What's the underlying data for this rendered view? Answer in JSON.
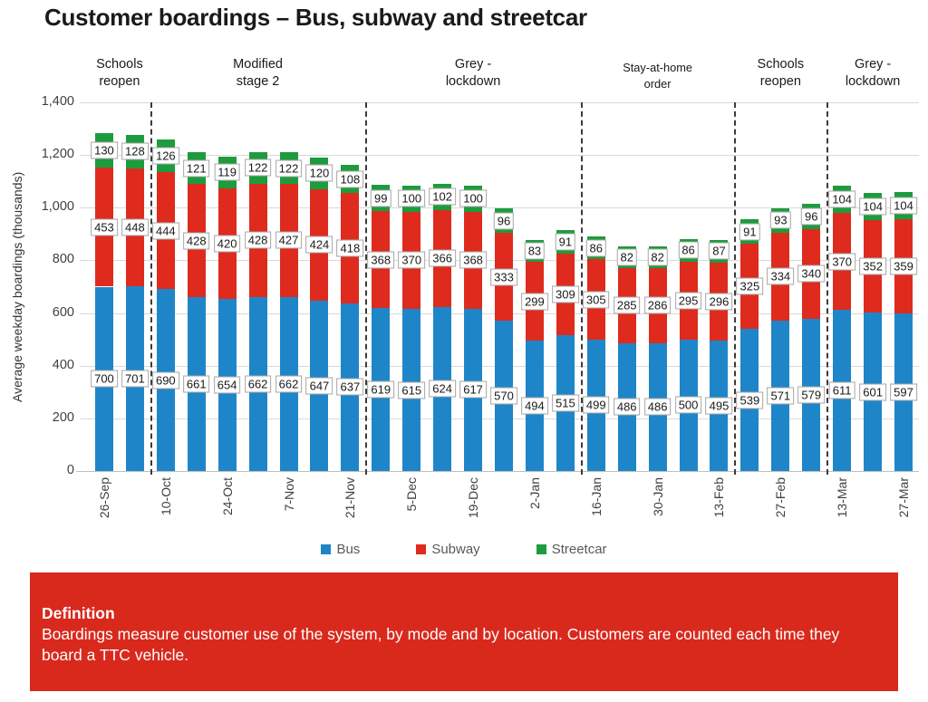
{
  "title": "Customer boardings – Bus, subway and streetcar",
  "chart_data": {
    "type": "bar",
    "stacked": true,
    "n_bars": 27,
    "title": "Customer boardings – Bus, subway and streetcar",
    "ylabel": "Average weekday boardings (thousands)",
    "xlabel": "",
    "ylim": [
      0,
      1400
    ],
    "grid": true,
    "legend_position": "bottom",
    "ytick_values": [
      0,
      200,
      400,
      600,
      800,
      1000,
      1200,
      1400
    ],
    "ytick_labels": [
      "0",
      "200",
      "400",
      "600",
      "800",
      "1,000",
      "1,200",
      "1,400"
    ],
    "x_tick_labels": [
      "26-Sep",
      "10-Oct",
      "24-Oct",
      "7-Nov",
      "21-Nov",
      "5-Dec",
      "19-Dec",
      "2-Jan",
      "16-Jan",
      "30-Jan",
      "13-Feb",
      "27-Feb",
      "13-Mar",
      "27-Mar"
    ],
    "x_tick_positions": [
      0,
      2,
      4,
      6,
      8,
      10,
      12,
      14,
      16,
      18,
      20,
      22,
      24,
      26
    ],
    "series": [
      {
        "name": "Bus",
        "color": "#1E86C8",
        "values": [
          700,
          701,
          690,
          661,
          654,
          662,
          662,
          647,
          637,
          619,
          615,
          624,
          617,
          570,
          494,
          515,
          499,
          486,
          486,
          500,
          495,
          539,
          571,
          579,
          611,
          601,
          597
        ]
      },
      {
        "name": "Subway",
        "color": "#DE2B1D",
        "values": [
          453,
          448,
          444,
          428,
          420,
          428,
          427,
          424,
          418,
          368,
          370,
          366,
          368,
          333,
          299,
          309,
          305,
          285,
          286,
          295,
          296,
          325,
          334,
          340,
          370,
          352,
          359
        ]
      },
      {
        "name": "Streetcar",
        "color": "#1C9C3C",
        "values": [
          130,
          128,
          126,
          121,
          119,
          122,
          122,
          120,
          108,
          99,
          100,
          102,
          100,
          96,
          83,
          91,
          86,
          82,
          82,
          86,
          87,
          91,
          93,
          96,
          104,
          104,
          104
        ]
      }
    ],
    "periods": [
      {
        "lines": "Schools\nreopen",
        "start": 0,
        "end": 2,
        "small": false
      },
      {
        "lines": "Modified\nstage 2",
        "start": 2,
        "end": 9,
        "small": false
      },
      {
        "lines": "Grey -\nlockdown",
        "start": 9,
        "end": 16,
        "small": false
      },
      {
        "lines": "Stay-at-home\norder",
        "start": 16,
        "end": 21,
        "small": true
      },
      {
        "lines": "Schools\nreopen",
        "start": 21,
        "end": 24,
        "small": false
      },
      {
        "lines": "Grey -\nlockdown",
        "start": 24,
        "end": 27,
        "small": false
      }
    ],
    "divider_boundaries": [
      2,
      9,
      16,
      21,
      24
    ]
  },
  "legend": {
    "items": [
      {
        "label": "Bus",
        "color": "#1E86C8"
      },
      {
        "label": "Subway",
        "color": "#DE2B1D"
      },
      {
        "label": "Streetcar",
        "color": "#1C9C3C"
      }
    ]
  },
  "definition": {
    "heading": "Definition",
    "body": "Boardings measure customer use of the system, by mode and by location. Customers are counted each time they board a TTC vehicle.",
    "background": "#D9291D"
  },
  "colors": {
    "gridline": "#D9D9D9",
    "axis_line": "#BFBFBF",
    "label_box_border": "#A6A6A6",
    "dashed_divider": "#3B3B3B",
    "tick_text": "#404040",
    "legend_text": "#595959"
  }
}
